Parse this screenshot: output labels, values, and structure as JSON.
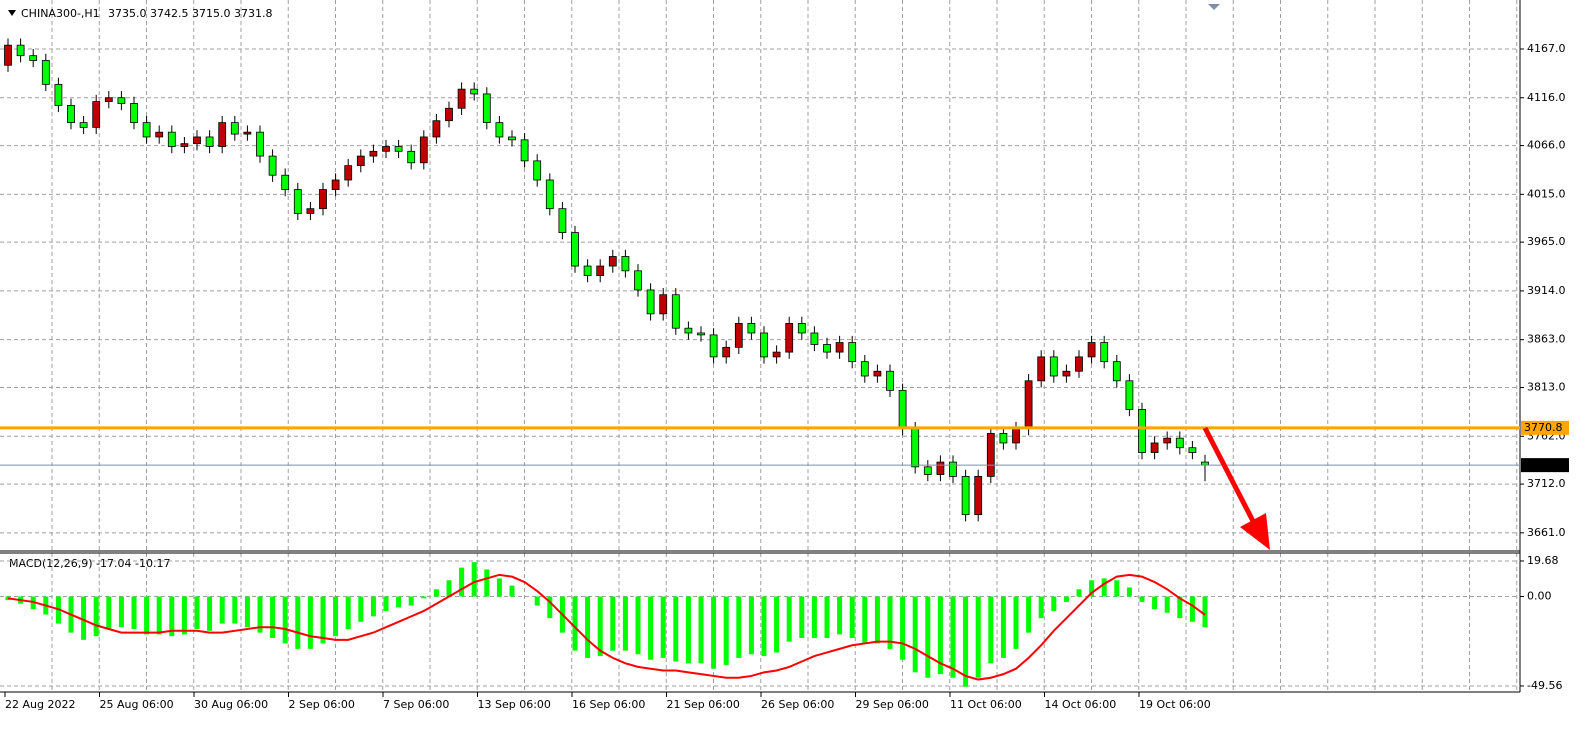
{
  "chart_data": [
    {
      "type": "candlestick",
      "title": "CHINA300-,H1",
      "subtitle": "3735.0 3742.5 3715.0 3731.8",
      "up_color": "#c00000",
      "down_color": "#00ff00",
      "wick_color": "#000000",
      "open": [
        4150,
        4171,
        4160,
        4155,
        4130,
        4108,
        4090,
        4085,
        4112,
        4116,
        4110,
        4090,
        4075,
        4080,
        4065,
        4068,
        4075,
        4065,
        4090,
        4078,
        4080,
        4055,
        4035,
        4020,
        3995,
        4000,
        4020,
        4030,
        4045,
        4055,
        4060,
        4065,
        4060,
        4048,
        4075,
        4092,
        4105,
        4125,
        4120,
        4090,
        4075,
        4072,
        4050,
        4030,
        4000,
        3975,
        3940,
        3930,
        3940,
        3950,
        3935,
        3915,
        3890,
        3910,
        3875,
        3870,
        3868,
        3845,
        3855,
        3880,
        3870,
        3845,
        3850,
        3880,
        3870,
        3858,
        3850,
        3860,
        3840,
        3825,
        3830,
        3810,
        3770,
        3730,
        3722,
        3735,
        3720,
        3680,
        3720,
        3765,
        3755,
        3770,
        3820,
        3845,
        3825,
        3830,
        3845,
        3860,
        3840,
        3820,
        3790,
        3745,
        3755,
        3760,
        3750,
        3735.0
      ],
      "high": [
        4178,
        4178,
        4167,
        4162,
        4137,
        4115,
        4097,
        4119,
        4123,
        4123,
        4117,
        4097,
        4087,
        4087,
        4075,
        4082,
        4082,
        4097,
        4097,
        4087,
        4087,
        4062,
        4042,
        4027,
        4007,
        4027,
        4037,
        4052,
        4062,
        4067,
        4072,
        4072,
        4067,
        4082,
        4099,
        4112,
        4132,
        4132,
        4127,
        4097,
        4082,
        4079,
        4057,
        4037,
        4007,
        3982,
        3947,
        3947,
        3957,
        3957,
        3942,
        3922,
        3917,
        3917,
        3882,
        3877,
        3875,
        3862,
        3887,
        3887,
        3877,
        3857,
        3887,
        3887,
        3877,
        3865,
        3867,
        3867,
        3847,
        3837,
        3837,
        3817,
        3777,
        3737,
        3742,
        3742,
        3727,
        3727,
        3772,
        3772,
        3777,
        3827,
        3852,
        3852,
        3837,
        3852,
        3867,
        3867,
        3847,
        3827,
        3797,
        3762,
        3767,
        3767,
        3757,
        3742.5
      ],
      "low": [
        4143,
        4153,
        4148,
        4123,
        4101,
        4083,
        4078,
        4078,
        4105,
        4103,
        4083,
        4068,
        4068,
        4058,
        4058,
        4061,
        4058,
        4058,
        4071,
        4071,
        4048,
        4028,
        4013,
        3988,
        3988,
        3993,
        4013,
        4023,
        4038,
        4048,
        4053,
        4053,
        4041,
        4041,
        4068,
        4085,
        4098,
        4113,
        4083,
        4068,
        4065,
        4043,
        4023,
        3993,
        3968,
        3933,
        3923,
        3923,
        3933,
        3928,
        3908,
        3883,
        3883,
        3868,
        3863,
        3861,
        3838,
        3838,
        3848,
        3863,
        3838,
        3838,
        3843,
        3863,
        3851,
        3843,
        3843,
        3833,
        3818,
        3818,
        3803,
        3763,
        3723,
        3715,
        3715,
        3713,
        3673,
        3673,
        3713,
        3748,
        3748,
        3763,
        3813,
        3818,
        3818,
        3823,
        3838,
        3833,
        3813,
        3783,
        3738,
        3738,
        3748,
        3743,
        3738,
        3715.0
      ],
      "close": [
        4171,
        4160,
        4155,
        4130,
        4108,
        4090,
        4085,
        4112,
        4116,
        4110,
        4090,
        4075,
        4080,
        4065,
        4068,
        4075,
        4065,
        4090,
        4078,
        4080,
        4055,
        4035,
        4020,
        3995,
        4000,
        4020,
        4030,
        4045,
        4055,
        4060,
        4065,
        4060,
        4048,
        4075,
        4092,
        4105,
        4125,
        4120,
        4090,
        4075,
        4072,
        4050,
        4030,
        4000,
        3975,
        3940,
        3930,
        3940,
        3950,
        3935,
        3915,
        3890,
        3910,
        3875,
        3870,
        3868,
        3845,
        3855,
        3880,
        3870,
        3845,
        3850,
        3880,
        3870,
        3858,
        3850,
        3860,
        3840,
        3825,
        3830,
        3810,
        3770,
        3730,
        3722,
        3735,
        3720,
        3680,
        3720,
        3765,
        3755,
        3770,
        3820,
        3845,
        3825,
        3830,
        3845,
        3860,
        3840,
        3820,
        3790,
        3745,
        3755,
        3760,
        3750,
        3745,
        3731.8
      ],
      "ylim": [
        3642,
        4213
      ],
      "yticks": [
        {
          "value": 4167,
          "label": "4167.0"
        },
        {
          "value": 4116,
          "label": "4116.0"
        },
        {
          "value": 4066,
          "label": "4066.0"
        },
        {
          "value": 4015,
          "label": "4015.0"
        },
        {
          "value": 3965,
          "label": "3965.0"
        },
        {
          "value": 3914,
          "label": "3914.0"
        },
        {
          "value": 3863,
          "label": "3863.0"
        },
        {
          "value": 3813,
          "label": "3813.0"
        },
        {
          "value": 3762,
          "label": "3762.0"
        },
        {
          "value": 3712,
          "label": "3712.0"
        },
        {
          "value": 3661,
          "label": "3661.0"
        }
      ],
      "grid": true,
      "hlines": [
        {
          "value": 3731.8,
          "color": "#7d8fa8",
          "label_bg": "#000000",
          "label_color": "#ffffff"
        },
        {
          "value": 3770.8,
          "color": "#ffa500",
          "label_bg": "#ffa500",
          "label_color": "#ffffff"
        }
      ],
      "xtick_labels": [
        "22 Aug 2022",
        "25 Aug 06:00",
        "30 Aug 06:00",
        "2 Sep 06:00",
        "7 Sep 06:00",
        "13 Sep 06:00",
        "16 Sep 06:00",
        "21 Sep 06:00",
        "26 Sep 06:00",
        "29 Sep 06:00",
        "11 Oct 06:00",
        "14 Oct 06:00",
        "19 Oct 06:00"
      ]
    },
    {
      "type": "macd",
      "title": "MACD(12,26,9) -17.04 -10.17",
      "histogram": {
        "color": "#00ff00",
        "values": [
          -2,
          -4,
          -7,
          -10,
          -15,
          -20,
          -24,
          -22,
          -18,
          -17,
          -18,
          -21,
          -21,
          -22,
          -21,
          -18,
          -19,
          -15,
          -15,
          -17,
          -20,
          -23,
          -26,
          -29,
          -29,
          -26,
          -22,
          -18,
          -14,
          -11,
          -8,
          -6,
          -5,
          -1,
          4,
          9,
          16,
          19,
          15,
          10,
          6,
          0,
          -5,
          -12,
          -20,
          -30,
          -34,
          -33,
          -30,
          -30,
          -32,
          -35,
          -34,
          -36,
          -37,
          -37,
          -40,
          -38,
          -34,
          -32,
          -33,
          -31,
          -25,
          -23,
          -23,
          -23,
          -21,
          -23,
          -26,
          -26,
          -29,
          -35,
          -42,
          -45,
          -43,
          -45,
          -50,
          -45,
          -37,
          -34,
          -29,
          -20,
          -12,
          -8,
          -3,
          4,
          9,
          10,
          9,
          5,
          -3,
          -7,
          -9,
          -12,
          -14,
          -17.04
        ]
      },
      "signal": {
        "color": "#ff0000",
        "values": [
          -1,
          -2,
          -3,
          -5,
          -7,
          -10,
          -13,
          -16,
          -18,
          -20,
          -20,
          -20,
          -20,
          -19,
          -19,
          -19,
          -20,
          -20,
          -19,
          -18,
          -17,
          -17,
          -18,
          -20,
          -22,
          -23,
          -24,
          -24,
          -22,
          -20,
          -17,
          -14,
          -11,
          -8,
          -4,
          0,
          4,
          8,
          10,
          12,
          11,
          8,
          3,
          -3,
          -10,
          -17,
          -24,
          -30,
          -34,
          -37,
          -39,
          -40,
          -41,
          -41,
          -42,
          -43,
          -44,
          -45,
          -45,
          -44,
          -42,
          -41,
          -39,
          -36,
          -33,
          -31,
          -29,
          -27,
          -26,
          -25,
          -25,
          -26,
          -29,
          -33,
          -37,
          -40,
          -44,
          -46,
          -45,
          -43,
          -40,
          -34,
          -27,
          -19,
          -12,
          -5,
          2,
          7,
          11,
          12,
          11,
          8,
          4,
          -1,
          -5,
          -10.17
        ]
      },
      "ylim": [
        -52.9,
        24.1
      ],
      "yticks": [
        19.68,
        {
          "value": 0,
          "label": "0.00"
        },
        -49.56
      ],
      "grid": true
    }
  ]
}
